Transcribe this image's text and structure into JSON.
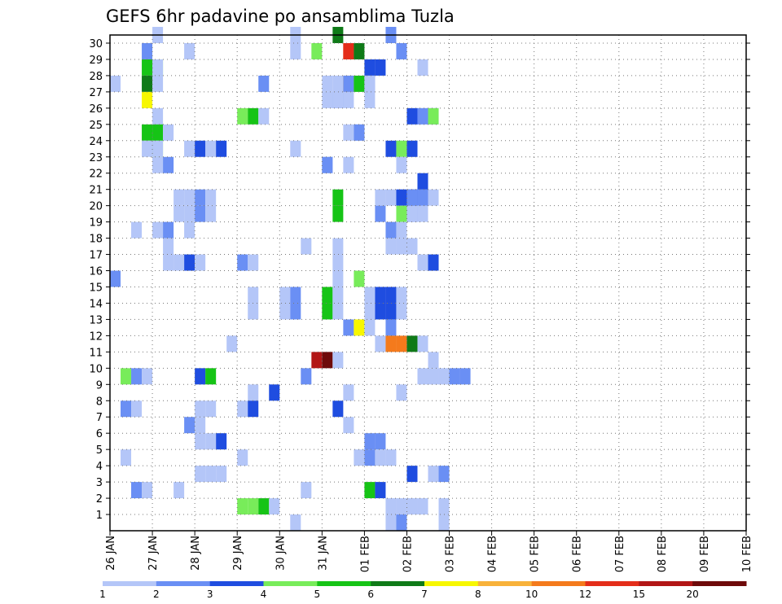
{
  "chart_data": {
    "type": "heatmap",
    "title": "GEFS 6hr padavine po ansamblima Tuzla",
    "xlabel": "",
    "ylabel": "",
    "x_time_step_hours": 6,
    "x_ticks": [
      "26 JAN",
      "27 JAN",
      "28 JAN",
      "29 JAN",
      "30 JAN",
      "31 JAN",
      "01 FEB",
      "02 FEB",
      "03 FEB",
      "04 FEB",
      "05 FEB",
      "06 FEB",
      "07 FEB",
      "08 FEB",
      "09 FEB",
      "10 FEB"
    ],
    "y_ticks": [
      1,
      2,
      3,
      4,
      5,
      6,
      7,
      8,
      9,
      10,
      11,
      12,
      13,
      14,
      15,
      16,
      17,
      18,
      19,
      20,
      21,
      22,
      23,
      24,
      25,
      26,
      27,
      28,
      29,
      30
    ],
    "ylim": [
      0,
      30
    ],
    "grid": true,
    "colorbar": {
      "labels": [
        "1",
        "2",
        "3",
        "4",
        "5",
        "6",
        "7",
        "8",
        "10",
        "12",
        "15",
        "20"
      ],
      "colors": [
        "#b4c6f8",
        "#6a8ff4",
        "#1f4de0",
        "#78ec5a",
        "#16c416",
        "#0f7a18",
        "#f7f700",
        "#f8b23a",
        "#f47a1c",
        "#e42d1a",
        "#b21616",
        "#6e0a0a"
      ]
    },
    "series": [
      {
        "member": 30,
        "points": [
          [
            4,
            1
          ],
          [
            17,
            1
          ],
          [
            21,
            6
          ],
          [
            26,
            2
          ]
        ]
      },
      {
        "member": 29,
        "points": [
          [
            3,
            2
          ],
          [
            7,
            1
          ],
          [
            17,
            1
          ],
          [
            19,
            4
          ],
          [
            22,
            9
          ],
          [
            22,
            10
          ],
          [
            23,
            6
          ],
          [
            27,
            2
          ]
        ]
      },
      {
        "member": 28,
        "points": [
          [
            3,
            5
          ],
          [
            4,
            4
          ],
          [
            4,
            1
          ],
          [
            24,
            3
          ],
          [
            25,
            3
          ],
          [
            29,
            1
          ]
        ]
      },
      {
        "member": 27,
        "points": [
          [
            0,
            1
          ],
          [
            3,
            6
          ],
          [
            4,
            1
          ],
          [
            14,
            2
          ],
          [
            20,
            1
          ],
          [
            21,
            1
          ],
          [
            22,
            1
          ],
          [
            22,
            8
          ],
          [
            22,
            2
          ],
          [
            23,
            5
          ],
          [
            24,
            2
          ],
          [
            24,
            1
          ]
        ]
      },
      {
        "member": 26,
        "points": [
          [
            3,
            7
          ],
          [
            20,
            1
          ],
          [
            21,
            2
          ],
          [
            21,
            1
          ],
          [
            22,
            1
          ],
          [
            24,
            1
          ]
        ]
      },
      {
        "member": 25,
        "points": [
          [
            4,
            1
          ],
          [
            12,
            4
          ],
          [
            13,
            5
          ],
          [
            14,
            1
          ],
          [
            28,
            3
          ],
          [
            29,
            1
          ],
          [
            29,
            2
          ],
          [
            30,
            2
          ],
          [
            30,
            4
          ]
        ]
      },
      {
        "member": 24,
        "points": [
          [
            3,
            5
          ],
          [
            4,
            1
          ],
          [
            4,
            5
          ],
          [
            5,
            1
          ],
          [
            22,
            1
          ],
          [
            23,
            1
          ],
          [
            23,
            2
          ]
        ]
      },
      {
        "member": 23,
        "points": [
          [
            3,
            1
          ],
          [
            4,
            4
          ],
          [
            4,
            1
          ],
          [
            7,
            1
          ],
          [
            8,
            3
          ],
          [
            9,
            1
          ],
          [
            10,
            3
          ],
          [
            17,
            1
          ],
          [
            26,
            3
          ],
          [
            27,
            1
          ],
          [
            27,
            4
          ],
          [
            28,
            1
          ],
          [
            28,
            3
          ]
        ]
      },
      {
        "member": 22,
        "points": [
          [
            4,
            1
          ],
          [
            5,
            2
          ],
          [
            20,
            1
          ],
          [
            20,
            2
          ],
          [
            22,
            1
          ],
          [
            27,
            1
          ]
        ]
      },
      {
        "member": 21,
        "points": [
          [
            29,
            3
          ]
        ]
      },
      {
        "member": 20,
        "points": [
          [
            6,
            1
          ],
          [
            7,
            1
          ],
          [
            8,
            2
          ],
          [
            9,
            1
          ],
          [
            21,
            5
          ],
          [
            25,
            1
          ],
          [
            26,
            1
          ],
          [
            27,
            1
          ],
          [
            27,
            3
          ],
          [
            28,
            3
          ],
          [
            28,
            2
          ],
          [
            29,
            3
          ],
          [
            29,
            2
          ],
          [
            30,
            1
          ]
        ]
      },
      {
        "member": 19,
        "points": [
          [
            6,
            1
          ],
          [
            7,
            1
          ],
          [
            8,
            2
          ],
          [
            9,
            1
          ],
          [
            21,
            5
          ],
          [
            25,
            2
          ],
          [
            27,
            4
          ],
          [
            28,
            3
          ],
          [
            28,
            1
          ],
          [
            29,
            1
          ]
        ]
      },
      {
        "member": 18,
        "points": [
          [
            2,
            1
          ],
          [
            4,
            1
          ],
          [
            5,
            2
          ],
          [
            7,
            1
          ],
          [
            26,
            2
          ],
          [
            27,
            1
          ]
        ]
      },
      {
        "member": 17,
        "points": [
          [
            5,
            1
          ],
          [
            18,
            1
          ],
          [
            21,
            1
          ],
          [
            26,
            1
          ],
          [
            27,
            1
          ],
          [
            28,
            1
          ]
        ]
      },
      {
        "member": 16,
        "points": [
          [
            5,
            1
          ],
          [
            6,
            1
          ],
          [
            7,
            3
          ],
          [
            8,
            1
          ],
          [
            12,
            2
          ],
          [
            13,
            1
          ],
          [
            21,
            1
          ],
          [
            29,
            1
          ],
          [
            30,
            3
          ]
        ]
      },
      {
        "member": 15,
        "points": [
          [
            0,
            2
          ],
          [
            21,
            1
          ],
          [
            23,
            4
          ]
        ]
      },
      {
        "member": 14,
        "points": [
          [
            13,
            1
          ],
          [
            16,
            1
          ],
          [
            17,
            2
          ],
          [
            20,
            5
          ],
          [
            21,
            1
          ],
          [
            24,
            1
          ],
          [
            25,
            3
          ],
          [
            26,
            3
          ],
          [
            27,
            1
          ]
        ]
      },
      {
        "member": 13,
        "points": [
          [
            13,
            1
          ],
          [
            16,
            1
          ],
          [
            17,
            2
          ],
          [
            20,
            5
          ],
          [
            21,
            1
          ],
          [
            24,
            1
          ],
          [
            25,
            3
          ],
          [
            26,
            3
          ],
          [
            27,
            1
          ]
        ]
      },
      {
        "member": 12,
        "points": [
          [
            22,
            2
          ],
          [
            23,
            7
          ],
          [
            24,
            1
          ],
          [
            26,
            2
          ]
        ]
      },
      {
        "member": 11,
        "points": [
          [
            11,
            1
          ],
          [
            25,
            1
          ],
          [
            26,
            9
          ],
          [
            27,
            9
          ],
          [
            28,
            6
          ],
          [
            29,
            1
          ]
        ]
      },
      {
        "member": 10,
        "points": [
          [
            19,
            11
          ],
          [
            20,
            12
          ],
          [
            21,
            1
          ],
          [
            30,
            1
          ]
        ]
      },
      {
        "member": 9,
        "points": [
          [
            1,
            4
          ],
          [
            2,
            2
          ],
          [
            3,
            1
          ],
          [
            8,
            3
          ],
          [
            9,
            5
          ],
          [
            18,
            2
          ],
          [
            29,
            1
          ],
          [
            30,
            1
          ],
          [
            31,
            1
          ],
          [
            32,
            2
          ],
          [
            33,
            2
          ]
        ]
      },
      {
        "member": 8,
        "points": [
          [
            13,
            1
          ],
          [
            15,
            3
          ],
          [
            22,
            1
          ],
          [
            27,
            1
          ]
        ]
      },
      {
        "member": 7,
        "points": [
          [
            1,
            2
          ],
          [
            2,
            1
          ],
          [
            8,
            1
          ],
          [
            9,
            1
          ],
          [
            12,
            1
          ],
          [
            13,
            3
          ],
          [
            21,
            3
          ]
        ]
      },
      {
        "member": 6,
        "points": [
          [
            7,
            2
          ],
          [
            8,
            1
          ],
          [
            22,
            1
          ]
        ]
      },
      {
        "member": 5,
        "points": [
          [
            8,
            1
          ],
          [
            9,
            1
          ],
          [
            10,
            3
          ],
          [
            24,
            2
          ],
          [
            25,
            2
          ]
        ]
      },
      {
        "member": 4,
        "points": [
          [
            1,
            1
          ],
          [
            12,
            1
          ],
          [
            23,
            1
          ],
          [
            24,
            2
          ],
          [
            25,
            1
          ],
          [
            26,
            1
          ]
        ]
      },
      {
        "member": 3,
        "points": [
          [
            8,
            1
          ],
          [
            9,
            1
          ],
          [
            10,
            1
          ],
          [
            28,
            3
          ],
          [
            30,
            1
          ],
          [
            31,
            2
          ]
        ]
      },
      {
        "member": 2,
        "points": [
          [
            2,
            2
          ],
          [
            3,
            1
          ],
          [
            6,
            1
          ],
          [
            18,
            1
          ],
          [
            24,
            5
          ],
          [
            25,
            3
          ]
        ]
      },
      {
        "member": 1,
        "points": [
          [
            12,
            4
          ],
          [
            13,
            4
          ],
          [
            14,
            5
          ],
          [
            15,
            1
          ],
          [
            26,
            1
          ],
          [
            27,
            1
          ],
          [
            28,
            1
          ],
          [
            29,
            1
          ],
          [
            31,
            1
          ]
        ]
      },
      {
        "member": 0,
        "points": [
          [
            17,
            1
          ],
          [
            26,
            1
          ],
          [
            27,
            2
          ],
          [
            31,
            1
          ]
        ]
      }
    ]
  }
}
